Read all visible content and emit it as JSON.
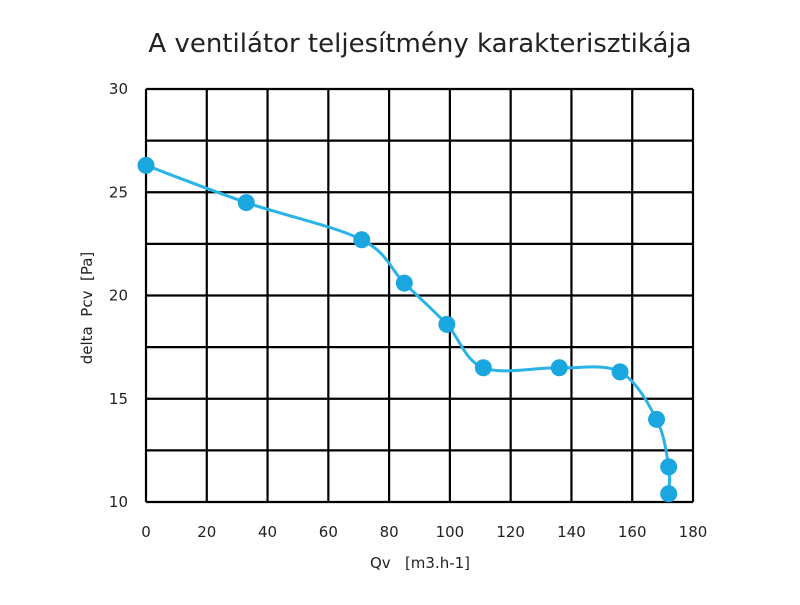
{
  "chart_data": {
    "type": "line",
    "title": "A ventilátor teljesítmény karakterisztikája",
    "xlabel": "Qv   [m3.h-1]",
    "ylabel": "delta  Pcv  [Pa]",
    "xlim": [
      0,
      180
    ],
    "ylim": [
      10,
      30
    ],
    "xticks": [
      0,
      20,
      40,
      60,
      80,
      100,
      120,
      140,
      160,
      180
    ],
    "yticks": [
      10,
      15,
      20,
      25,
      30
    ],
    "grid": true,
    "line_color": "#2ab3e6",
    "marker_color": "#1aa7e0",
    "grid_color": "#000000",
    "series": [
      {
        "x": [
          0,
          33,
          71,
          85,
          99,
          111,
          136,
          156,
          168,
          172,
          172
        ],
        "y": [
          26.3,
          24.5,
          22.7,
          20.6,
          18.6,
          16.5,
          16.5,
          16.3,
          14.0,
          11.7,
          10.4
        ]
      }
    ]
  }
}
